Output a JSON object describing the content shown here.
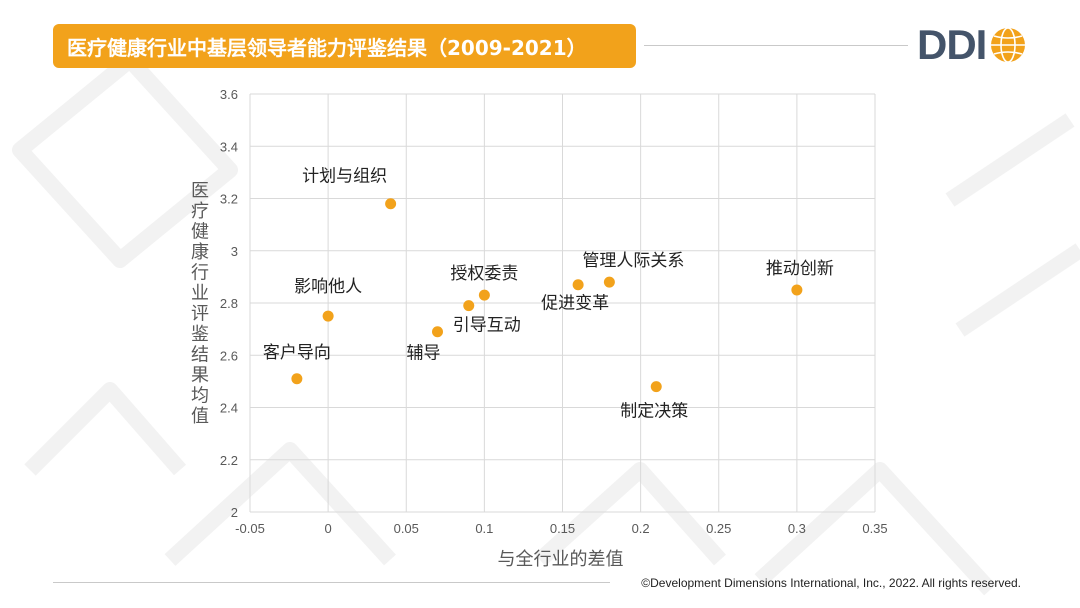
{
  "title": "医疗健康行业中基层领导者能力评鉴结果（2009-2021）",
  "logo": {
    "text": "DDI"
  },
  "copyright": "©Development Dimensions International, Inc., 2022. All rights reserved.",
  "colors": {
    "accent": "#F2A21B",
    "logo": "#44546A",
    "grid": "#d9d9d9",
    "axis_text": "#595959"
  },
  "chart_data": {
    "type": "scatter",
    "xlabel": "与全行业的差值",
    "ylabel": "医疗健康行业评鉴结果均值",
    "xlim": [
      -0.05,
      0.35
    ],
    "ylim": [
      2,
      3.6
    ],
    "x_ticks": [
      "-0.05",
      "0",
      "0.05",
      "0.1",
      "0.15",
      "0.2",
      "0.25",
      "0.3",
      "0.35"
    ],
    "y_ticks": [
      "2",
      "2.2",
      "2.4",
      "2.6",
      "2.8",
      "3",
      "3.2",
      "3.4",
      "3.6"
    ],
    "grid": true,
    "points": [
      {
        "label": "计划与组织",
        "x": 0.04,
        "y": 3.18
      },
      {
        "label": "影响他人",
        "x": 0.0,
        "y": 2.75
      },
      {
        "label": "客户导向",
        "x": -0.02,
        "y": 2.51
      },
      {
        "label": "授权委责",
        "x": 0.1,
        "y": 2.83
      },
      {
        "label": "引导互动",
        "x": 0.09,
        "y": 2.79
      },
      {
        "label": "辅导",
        "x": 0.07,
        "y": 2.69
      },
      {
        "label": "促进变革",
        "x": 0.16,
        "y": 2.87
      },
      {
        "label": "管理人际关系",
        "x": 0.18,
        "y": 2.88
      },
      {
        "label": "推动创新",
        "x": 0.3,
        "y": 2.85
      },
      {
        "label": "制定决策",
        "x": 0.21,
        "y": 2.48
      }
    ]
  }
}
